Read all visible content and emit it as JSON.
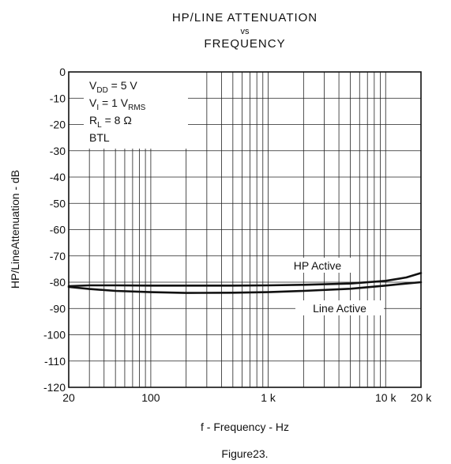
{
  "chart_data": {
    "type": "line",
    "title_lines": [
      "HP/LINE ATTENUATION",
      "vs",
      "FREQUENCY"
    ],
    "xlabel": "f - Frequency - Hz",
    "ylabel": "HP/LineAttenuation - dB",
    "xscale": "log",
    "xlim": [
      20,
      20000
    ],
    "ylim": [
      -120,
      0
    ],
    "xticks": [
      {
        "value": 20,
        "label": "20"
      },
      {
        "value": 100,
        "label": "100"
      },
      {
        "value": 1000,
        "label": "1 k"
      },
      {
        "value": 10000,
        "label": "10 k"
      },
      {
        "value": 20000,
        "label": "20 k"
      }
    ],
    "yticks": [
      {
        "value": 0,
        "label": "0"
      },
      {
        "value": -10,
        "label": "-10"
      },
      {
        "value": -20,
        "label": "-20"
      },
      {
        "value": -30,
        "label": "-30"
      },
      {
        "value": -40,
        "label": "-40"
      },
      {
        "value": -50,
        "label": "-50"
      },
      {
        "value": -60,
        "label": "-60"
      },
      {
        "value": -70,
        "label": "-70"
      },
      {
        "value": -80,
        "label": "-80"
      },
      {
        "value": -90,
        "label": "-90"
      },
      {
        "value": -100,
        "label": "-100"
      },
      {
        "value": -110,
        "label": "-110"
      },
      {
        "value": -120,
        "label": "-120"
      }
    ],
    "grid": true,
    "conditions": [
      {
        "main": "V",
        "sub": "DD",
        "rest": " = 5 V"
      },
      {
        "main": "V",
        "sub": "I",
        "rest": " = 1 V",
        "sub2": "RMS"
      },
      {
        "main": "R",
        "sub": "L",
        "rest": " = 8 Ω"
      },
      {
        "main": "BTL",
        "sub": "",
        "rest": ""
      }
    ],
    "series": [
      {
        "name": "HP Active",
        "x": [
          20,
          30,
          50,
          100,
          200,
          500,
          1000,
          2000,
          5000,
          10000,
          15000,
          20000
        ],
        "y": [
          -81.5,
          -81.2,
          -81.2,
          -81.3,
          -81.3,
          -81.3,
          -81.2,
          -81.0,
          -80.5,
          -79.5,
          -78.2,
          -76.5
        ]
      },
      {
        "name": "Line Active",
        "x": [
          20,
          30,
          50,
          100,
          200,
          500,
          1000,
          2000,
          5000,
          10000,
          15000,
          20000
        ],
        "y": [
          -81.8,
          -82.6,
          -83.3,
          -83.8,
          -84.1,
          -84.0,
          -83.8,
          -83.3,
          -82.5,
          -81.3,
          -80.5,
          -80.0
        ]
      }
    ],
    "caption": "Figure23."
  }
}
